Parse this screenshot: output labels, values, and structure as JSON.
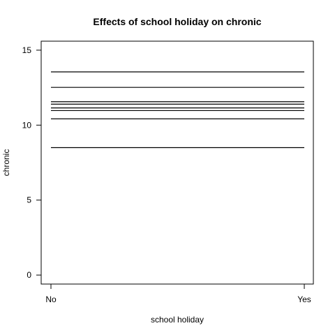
{
  "chart_data": {
    "type": "line",
    "title": "Effects of school holiday on chronic",
    "xlabel": "school holiday",
    "ylabel": "chronic",
    "categories": [
      "No",
      "Yes"
    ],
    "y_ticks": [
      0,
      5,
      10,
      15
    ],
    "ylim": [
      -0.6,
      15.6
    ],
    "grid": false,
    "legend": "none",
    "series": [
      {
        "values": [
          13.55,
          13.55
        ]
      },
      {
        "values": [
          12.52,
          12.52
        ]
      },
      {
        "values": [
          11.56,
          11.56
        ]
      },
      {
        "values": [
          11.4,
          11.4
        ]
      },
      {
        "values": [
          11.15,
          11.15
        ]
      },
      {
        "values": [
          10.97,
          10.97
        ]
      },
      {
        "values": [
          10.42,
          10.42
        ]
      },
      {
        "values": [
          8.5,
          8.5
        ]
      }
    ]
  }
}
